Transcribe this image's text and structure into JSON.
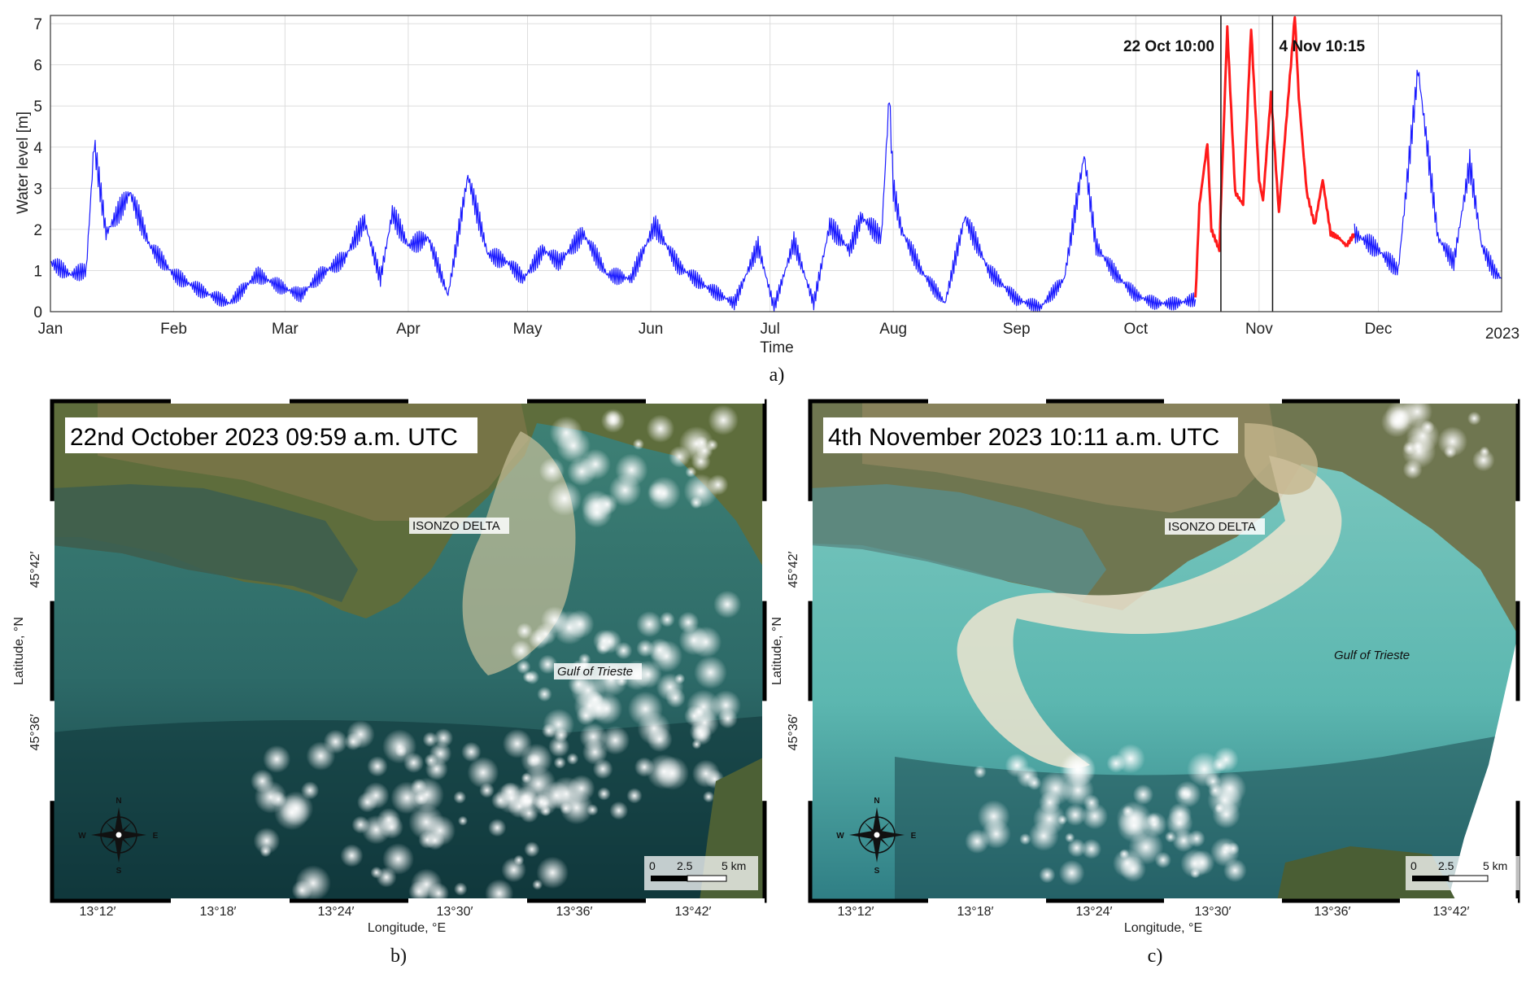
{
  "chart_data": {
    "type": "line",
    "ylabel": "Water level [m]",
    "xlabel": "Time",
    "ylim": [
      0,
      7.2
    ],
    "yticks": [
      0,
      1,
      2,
      3,
      4,
      5,
      6,
      7
    ],
    "months": [
      "Jan",
      "Feb",
      "Mar",
      "Apr",
      "May",
      "Jun",
      "Jul",
      "Aug",
      "Sep",
      "Oct",
      "Nov",
      "Dec"
    ],
    "year_label": "2023",
    "grid": true,
    "series": [
      {
        "color": "#1a1aff",
        "days": [
          0,
          5,
          9,
          11,
          14,
          20,
          25,
          31,
          38,
          45,
          52,
          58,
          63,
          68,
          74,
          79,
          83,
          86,
          90,
          95,
          100,
          105,
          110,
          115,
          119,
          124,
          128,
          134,
          140,
          146,
          152,
          158,
          165,
          172,
          178,
          182,
          187,
          192,
          196,
          201,
          204,
          209,
          211,
          212,
          214,
          219,
          225,
          230,
          236,
          243,
          249,
          255,
          260,
          263,
          268,
          273,
          278,
          283,
          288
        ],
        "values": [
          1.2,
          0.9,
          1.0,
          4.1,
          1.9,
          2.9,
          1.6,
          0.9,
          0.5,
          0.2,
          0.9,
          0.6,
          0.4,
          0.9,
          1.3,
          2.2,
          0.8,
          2.4,
          1.6,
          1.8,
          0.4,
          3.3,
          1.4,
          1.2,
          0.8,
          1.5,
          1.2,
          1.9,
          0.9,
          0.8,
          2.1,
          1.1,
          0.6,
          0.2,
          1.6,
          0.1,
          1.7,
          0.2,
          2.1,
          1.5,
          2.3,
          1.8,
          5.3,
          3.0,
          2.0,
          1.0,
          0.2,
          2.3,
          1.0,
          0.3,
          0.1,
          0.8,
          3.8,
          1.6,
          0.9,
          0.4,
          0.2,
          0.2,
          0.3
        ]
      },
      {
        "color": "#ff1a1a",
        "days": [
          288,
          289,
          291,
          292,
          294,
          296,
          298,
          300,
          302,
          304,
          305,
          307,
          309,
          311,
          313,
          314,
          316,
          318,
          320,
          322,
          324,
          326,
          328
        ],
        "values": [
          0.3,
          2.6,
          4.1,
          2.0,
          1.5,
          6.9,
          2.9,
          2.6,
          6.9,
          3.2,
          2.7,
          5.3,
          2.4,
          4.8,
          7.2,
          5.2,
          2.9,
          2.1,
          3.2,
          1.9,
          1.8,
          1.6,
          1.9
        ]
      },
      {
        "color": "#1a1aff",
        "days": [
          328,
          334,
          339,
          344,
          349,
          353,
          357,
          360,
          363,
          365
        ],
        "values": [
          1.9,
          1.5,
          1.0,
          5.9,
          1.8,
          1.2,
          3.6,
          1.6,
          1.0,
          0.8
        ]
      }
    ],
    "events": [
      {
        "label": "22 Oct 10:00",
        "day": 294.4
      },
      {
        "label": "4 Nov 10:15",
        "day": 307.4
      }
    ],
    "panel_label": "a)"
  },
  "maps": [
    {
      "title": "22nd October 2023 09:59 a.m. UTC",
      "place_label": "ISONZO DELTA",
      "gulf_label": "Gulf of Trieste",
      "panel_label": "b)",
      "sea_color": "#2f6e6c",
      "plume_color": "#c8c09a",
      "cloud_cover": 0.35
    },
    {
      "title": "4th November 2023 10:11 a.m. UTC",
      "place_label": "ISONZO DELTA",
      "gulf_label": "Gulf of Trieste",
      "panel_label": "c)",
      "sea_color": "#5fb8b0",
      "plume_color": "#ece4cf",
      "cloud_cover": 0.15
    }
  ],
  "map_axes": {
    "lon_ticks": [
      "13°12′",
      "13°18′",
      "13°24′",
      "13°30′",
      "13°36′",
      "13°42′"
    ],
    "lat_ticks": [
      "45°42′",
      "45°36′"
    ],
    "xlabel": "Longitude, °E",
    "ylabel": "Latitude, °N",
    "scale": {
      "labels": [
        "0",
        "2.5",
        "5 km"
      ]
    },
    "compass": {
      "n": "N",
      "s": "S",
      "e": "E",
      "w": "W"
    }
  }
}
